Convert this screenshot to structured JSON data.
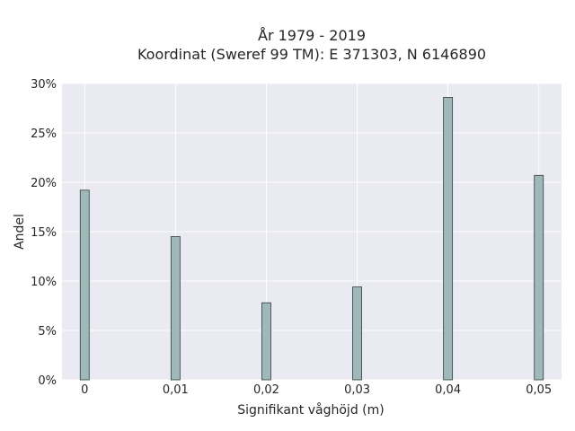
{
  "chart_data": {
    "type": "bar",
    "title_line1": "År 1979 - 2019",
    "title_line2": "Koordinat (Sweref 99 TM): E 371303, N 6146890",
    "xlabel": "Signifikant våghöjd (m)",
    "ylabel": "Andel",
    "x": [
      0,
      0.01,
      0.02,
      0.03,
      0.04,
      0.05
    ],
    "xtick_labels": [
      "0",
      "0,01",
      "0,02",
      "0,03",
      "0,04",
      "0,05"
    ],
    "values": [
      19.2,
      14.5,
      7.8,
      9.4,
      28.6,
      20.7
    ],
    "ylim": [
      0,
      30
    ],
    "yticks": [
      0,
      5,
      10,
      15,
      20,
      25,
      30
    ],
    "ytick_labels": [
      "0%",
      "5%",
      "10%",
      "15%",
      "20%",
      "25%",
      "30%"
    ],
    "xlim": [
      -0.0025,
      0.0525
    ],
    "grid": true,
    "colors": {
      "background": "#eaeaf2",
      "bar_fill": "#9fb8b9",
      "bar_edge": "#2f3b3b",
      "grid": "#ffffff"
    }
  }
}
